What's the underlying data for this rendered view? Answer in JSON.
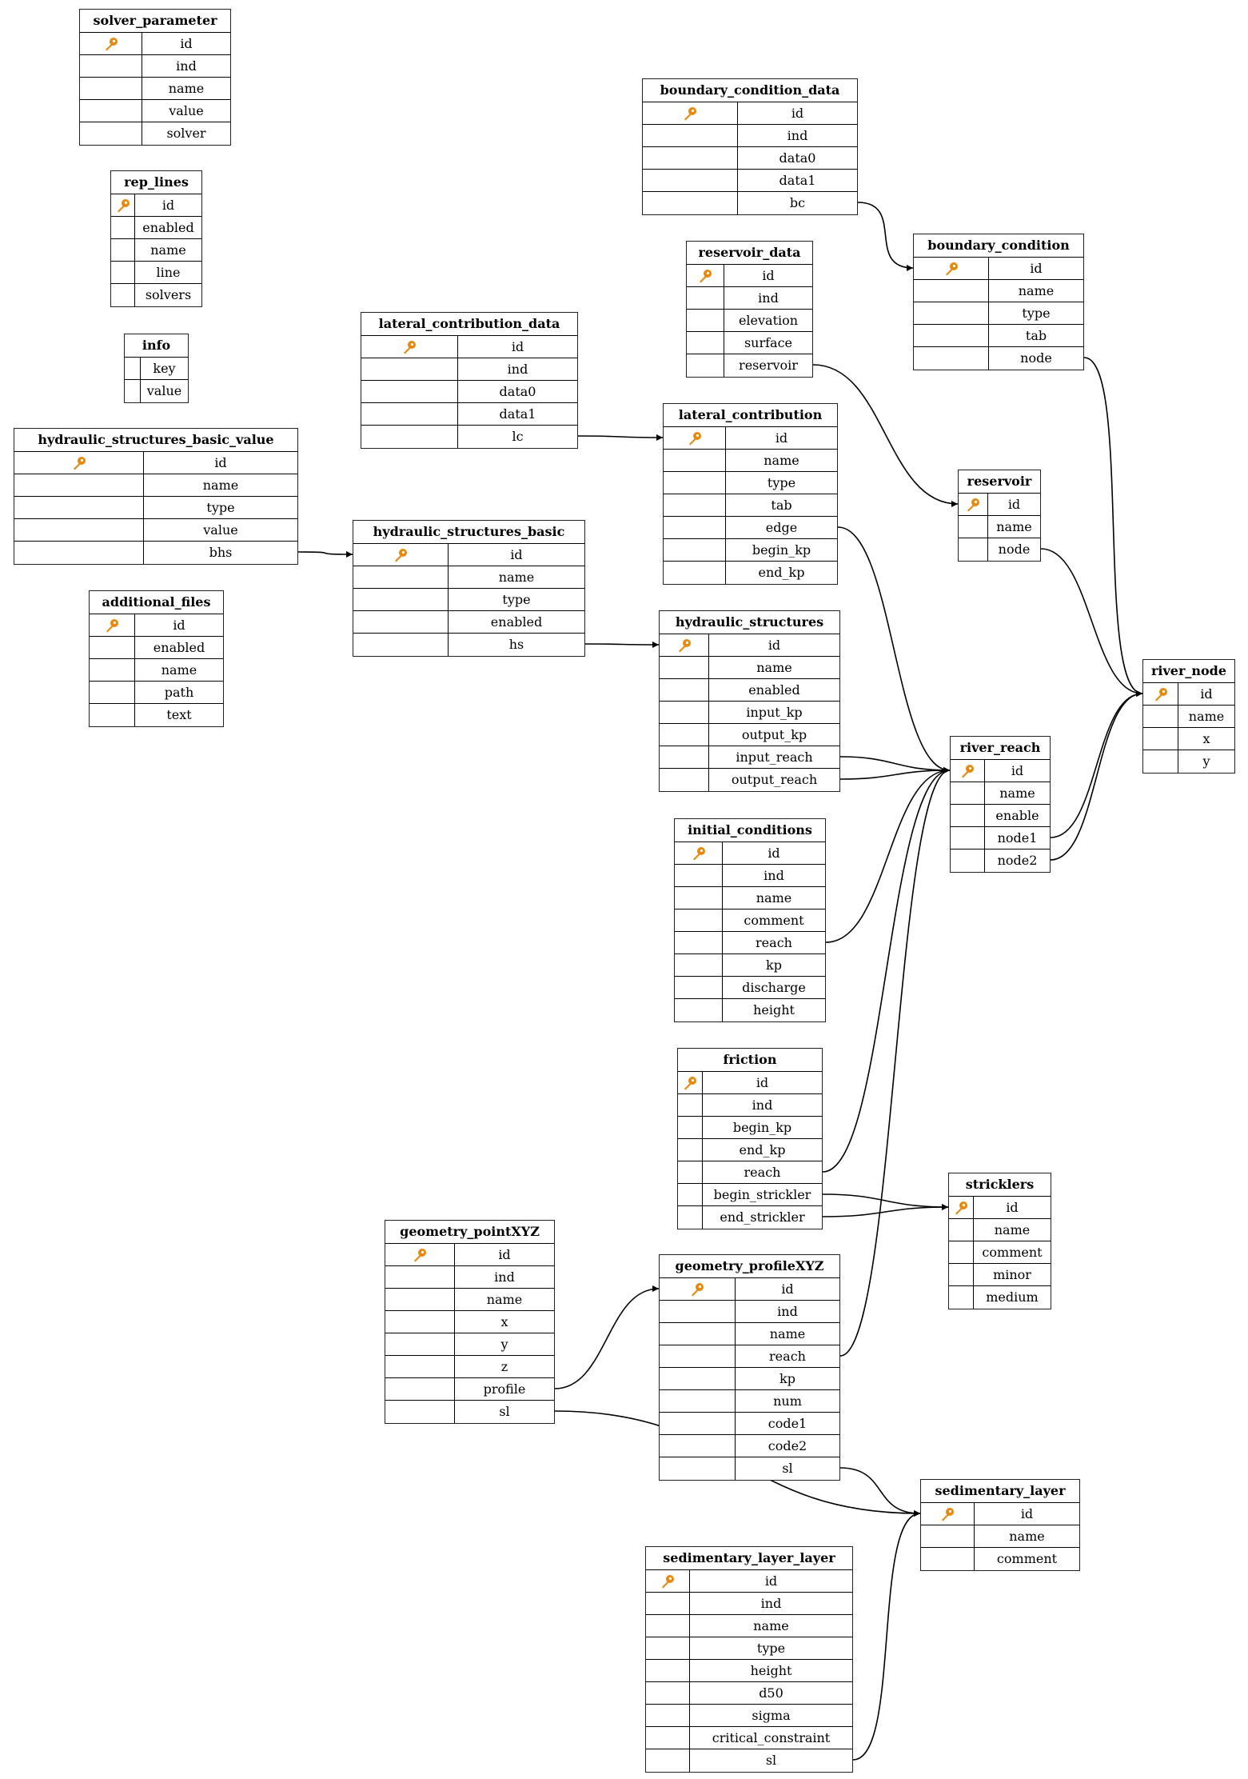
{
  "colors": {
    "key_icon": "#e8890c",
    "line": "#000000"
  },
  "tables": [
    {
      "name": "solver_parameter",
      "key": true,
      "columns": [
        "id",
        "ind",
        "name",
        "value",
        "solver"
      ]
    },
    {
      "name": "rep_lines",
      "key": true,
      "columns": [
        "id",
        "enabled",
        "name",
        "line",
        "solvers"
      ]
    },
    {
      "name": "info",
      "key": false,
      "columns": [
        "key",
        "value"
      ]
    },
    {
      "name": "hydraulic_structures_basic_value",
      "key": true,
      "columns": [
        "id",
        "name",
        "type",
        "value",
        "bhs"
      ]
    },
    {
      "name": "additional_files",
      "key": true,
      "columns": [
        "id",
        "enabled",
        "name",
        "path",
        "text"
      ]
    },
    {
      "name": "boundary_condition_data",
      "key": true,
      "columns": [
        "id",
        "ind",
        "data0",
        "data1",
        "bc"
      ]
    },
    {
      "name": "reservoir_data",
      "key": true,
      "columns": [
        "id",
        "ind",
        "elevation",
        "surface",
        "reservoir"
      ]
    },
    {
      "name": "lateral_contribution_data",
      "key": true,
      "columns": [
        "id",
        "ind",
        "data0",
        "data1",
        "lc"
      ]
    },
    {
      "name": "boundary_condition",
      "key": true,
      "columns": [
        "id",
        "name",
        "type",
        "tab",
        "node"
      ]
    },
    {
      "name": "lateral_contribution",
      "key": true,
      "columns": [
        "id",
        "name",
        "type",
        "tab",
        "edge",
        "begin_kp",
        "end_kp"
      ]
    },
    {
      "name": "reservoir",
      "key": true,
      "columns": [
        "id",
        "name",
        "node"
      ]
    },
    {
      "name": "hydraulic_structures_basic",
      "key": true,
      "columns": [
        "id",
        "name",
        "type",
        "enabled",
        "hs"
      ]
    },
    {
      "name": "hydraulic_structures",
      "key": true,
      "columns": [
        "id",
        "name",
        "enabled",
        "input_kp",
        "output_kp",
        "input_reach",
        "output_reach"
      ]
    },
    {
      "name": "river_node",
      "key": true,
      "columns": [
        "id",
        "name",
        "x",
        "y"
      ]
    },
    {
      "name": "river_reach",
      "key": true,
      "columns": [
        "id",
        "name",
        "enable",
        "node1",
        "node2"
      ]
    },
    {
      "name": "initial_conditions",
      "key": true,
      "columns": [
        "id",
        "ind",
        "name",
        "comment",
        "reach",
        "kp",
        "discharge",
        "height"
      ]
    },
    {
      "name": "friction",
      "key": true,
      "columns": [
        "id",
        "ind",
        "begin_kp",
        "end_kp",
        "reach",
        "begin_strickler",
        "end_strickler"
      ]
    },
    {
      "name": "stricklers",
      "key": true,
      "columns": [
        "id",
        "name",
        "comment",
        "minor",
        "medium"
      ]
    },
    {
      "name": "geometry_pointXYZ",
      "key": true,
      "columns": [
        "id",
        "ind",
        "name",
        "x",
        "y",
        "z",
        "profile",
        "sl"
      ]
    },
    {
      "name": "geometry_profileXYZ",
      "key": true,
      "columns": [
        "id",
        "ind",
        "name",
        "reach",
        "kp",
        "num",
        "code1",
        "code2",
        "sl"
      ]
    },
    {
      "name": "sedimentary_layer",
      "key": true,
      "columns": [
        "id",
        "name",
        "comment"
      ]
    },
    {
      "name": "sedimentary_layer_layer",
      "key": true,
      "columns": [
        "id",
        "ind",
        "name",
        "type",
        "height",
        "d50",
        "sigma",
        "critical_constraint",
        "sl"
      ]
    }
  ],
  "relations": [
    {
      "from": "boundary_condition_data",
      "col": "bc",
      "to": "boundary_condition"
    },
    {
      "from": "reservoir_data",
      "col": "reservoir",
      "to": "reservoir"
    },
    {
      "from": "lateral_contribution_data",
      "col": "lc",
      "to": "lateral_contribution"
    },
    {
      "from": "hydraulic_structures_basic_value",
      "col": "bhs",
      "to": "hydraulic_structures_basic"
    },
    {
      "from": "hydraulic_structures_basic",
      "col": "hs",
      "to": "hydraulic_structures"
    },
    {
      "from": "boundary_condition",
      "col": "node",
      "to": "river_node"
    },
    {
      "from": "reservoir",
      "col": "node",
      "to": "river_node"
    },
    {
      "from": "lateral_contribution",
      "col": "edge",
      "to": "river_reach"
    },
    {
      "from": "hydraulic_structures",
      "col": "input_reach",
      "to": "river_reach"
    },
    {
      "from": "hydraulic_structures",
      "col": "output_reach",
      "to": "river_reach"
    },
    {
      "from": "river_reach",
      "col": "node1",
      "to": "river_node"
    },
    {
      "from": "river_reach",
      "col": "node2",
      "to": "river_node"
    },
    {
      "from": "initial_conditions",
      "col": "reach",
      "to": "river_reach"
    },
    {
      "from": "friction",
      "col": "reach",
      "to": "river_reach"
    },
    {
      "from": "friction",
      "col": "begin_strickler",
      "to": "stricklers"
    },
    {
      "from": "friction",
      "col": "end_strickler",
      "to": "stricklers"
    },
    {
      "from": "geometry_pointXYZ",
      "col": "profile",
      "to": "geometry_profileXYZ"
    },
    {
      "from": "geometry_pointXYZ",
      "col": "sl",
      "to": "sedimentary_layer"
    },
    {
      "from": "geometry_profileXYZ",
      "col": "reach",
      "to": "river_reach"
    },
    {
      "from": "geometry_profileXYZ",
      "col": "sl",
      "to": "sedimentary_layer"
    },
    {
      "from": "sedimentary_layer_layer",
      "col": "sl",
      "to": "sedimentary_layer"
    }
  ]
}
